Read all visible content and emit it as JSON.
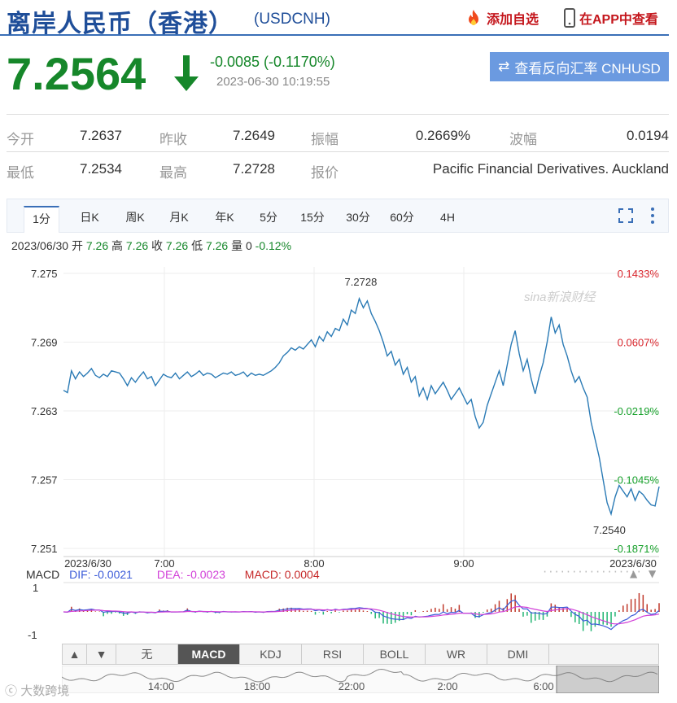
{
  "header": {
    "title": "离岸人民币（香港）",
    "code": "(USDCNH)",
    "add_fav": "添加自选",
    "app_link": "在APP中查看"
  },
  "quote": {
    "price": "7.2564",
    "change": "-0.0085 (-0.1170%)",
    "timestamp": "2023-06-30 10:19:55",
    "reverse_btn": "查看反向汇率 CNHUSD",
    "down_color": "#16872a"
  },
  "stats": {
    "open_label": "今开",
    "open": "7.2637",
    "prev_label": "昨收",
    "prev": "7.2649",
    "amp_label": "振幅",
    "amp": "0.2669%",
    "wave_label": "波幅",
    "wave": "0.0194",
    "low_label": "最低",
    "low": "7.2534",
    "high_label": "最高",
    "high": "7.2728",
    "src_label": "报价",
    "src": "Pacific Financial Derivatives. Auckland"
  },
  "tabs": [
    "1分",
    "日K",
    "周K",
    "月K",
    "年K",
    "5分",
    "15分",
    "30分",
    "60分",
    "4H"
  ],
  "bar_info": {
    "date": "2023/06/30",
    "open_label": "开",
    "open": "7.26",
    "high_label": "高",
    "high": "7.26",
    "close_label": "收",
    "close": "7.26",
    "low_label": "低",
    "low": "7.26",
    "vol_label": "量",
    "vol": "0",
    "chg": "-0.12%"
  },
  "chart_data": {
    "type": "line",
    "y_ticks": [
      "7.275",
      "7.269",
      "7.263",
      "7.257",
      "7.251"
    ],
    "pct_ticks": [
      "0.1433%",
      "0.0607%",
      "-0.0219%",
      "-0.1045%",
      "-0.1871%"
    ],
    "ylim": [
      7.251,
      7.275
    ],
    "x_ticks": [
      "2023/6/30",
      "7:00",
      "8:00",
      "9:00",
      "2023/6/30"
    ],
    "max_label": "7.2728",
    "min_label": "7.2540",
    "watermark": "sina新浪财经",
    "line_color": "#2a7ab5",
    "values": [
      7.2648,
      7.2646,
      7.2665,
      7.2658,
      7.2664,
      7.266,
      7.2663,
      7.2667,
      7.2661,
      7.2659,
      7.2662,
      7.266,
      7.2665,
      7.2664,
      7.2663,
      7.2658,
      7.2652,
      7.2659,
      7.2655,
      7.266,
      7.2664,
      7.2658,
      7.266,
      7.2652,
      7.2657,
      7.2662,
      7.266,
      7.2659,
      7.2663,
      7.2658,
      7.2661,
      7.2664,
      7.266,
      7.2662,
      7.2665,
      7.2661,
      7.2663,
      7.2662,
      7.2659,
      7.2661,
      7.2663,
      7.2662,
      7.2664,
      7.2661,
      7.2662,
      7.2664,
      7.266,
      7.2663,
      7.2661,
      7.2662,
      7.2661,
      7.2663,
      7.2665,
      7.2668,
      7.2672,
      7.2678,
      7.2681,
      7.2685,
      7.2683,
      7.2686,
      7.2684,
      7.2688,
      7.2692,
      7.2686,
      7.2695,
      7.2691,
      7.2699,
      7.2695,
      7.2702,
      7.27,
      7.271,
      7.2705,
      7.2718,
      7.2715,
      7.2728,
      7.272,
      7.2726,
      7.2715,
      7.2708,
      7.27,
      7.269,
      7.2678,
      7.2682,
      7.267,
      7.2675,
      7.2662,
      7.2668,
      7.2655,
      7.266,
      7.2643,
      7.265,
      7.264,
      7.2652,
      7.2645,
      7.265,
      7.2655,
      7.2648,
      7.264,
      7.2645,
      7.265,
      7.2643,
      7.2636,
      7.264,
      7.2625,
      7.2615,
      7.262,
      7.2635,
      7.2645,
      7.2655,
      7.2665,
      7.2652,
      7.267,
      7.2688,
      7.27,
      7.268,
      7.2665,
      7.2675,
      7.2658,
      7.2645,
      7.266,
      7.2672,
      7.269,
      7.2712,
      7.2698,
      7.2705,
      7.2688,
      7.2678,
      7.2665,
      7.2655,
      7.266,
      7.265,
      7.2642,
      7.262,
      7.2605,
      7.259,
      7.257,
      7.255,
      7.254,
      7.2555,
      7.2565,
      7.256,
      7.2555,
      7.2562,
      7.2552,
      7.256,
      7.2557,
      7.2552,
      7.2548,
      7.2547,
      7.2564
    ]
  },
  "macd": {
    "label": "MACD",
    "dif": "DIF: -0.0021",
    "dea": "DEA: -0.0023",
    "macd": "MACD: 0.0004",
    "y_top": "1",
    "y_bot": "-1",
    "dif_color": "#3b5bd8",
    "dea_color": "#d23fd8"
  },
  "indicator_buttons": [
    "无",
    "MACD",
    "KDJ",
    "RSI",
    "BOLL",
    "WR",
    "DMI"
  ],
  "nav_ticks": [
    "14:00",
    "18:00",
    "22:00",
    "2:00",
    "6:00"
  ],
  "footer": {
    "watermark": "大数跨境"
  }
}
